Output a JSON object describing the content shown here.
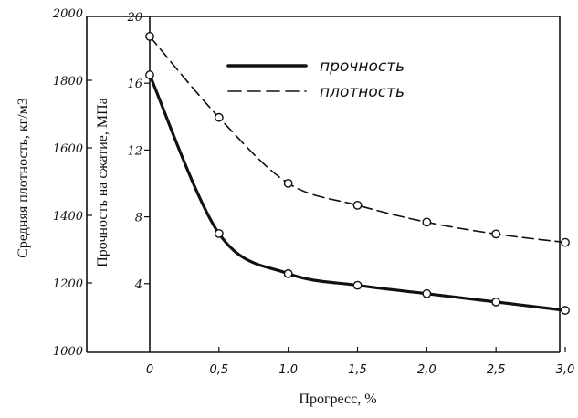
{
  "chart_data": {
    "type": "line",
    "xlabel": "Прогресс, %",
    "x_ticks": [
      "0",
      "0,5",
      "1.0",
      "1,5",
      "2,0",
      "2,5",
      "3,0"
    ],
    "x_values": [
      0,
      0.5,
      1.0,
      1.5,
      2.0,
      2.5,
      3.0
    ],
    "xlim": [
      -0.5,
      3.0
    ],
    "left_axis": {
      "label": "Средняя плотность, кг/м3",
      "ticks": [
        "1000",
        "1200",
        "1400",
        "1600",
        "1800",
        "2000"
      ],
      "tick_values": [
        1000,
        1200,
        1400,
        1600,
        1800,
        2000
      ],
      "lim": [
        1000,
        2000
      ]
    },
    "right_axis": {
      "label": "Прочность на сжатие, МПа",
      "ticks": [
        "4",
        "8",
        "12",
        "16",
        "20"
      ],
      "tick_values": [
        4,
        8,
        12,
        16,
        20
      ],
      "lim": [
        0,
        20
      ]
    },
    "series": [
      {
        "name": "прочность",
        "axis": "right",
        "style": "solid",
        "x": [
          0,
          0.5,
          1.0,
          1.5,
          2.0,
          2.5,
          3.0
        ],
        "values": [
          16.5,
          7.0,
          4.6,
          3.9,
          3.4,
          2.9,
          2.4
        ]
      },
      {
        "name": "плотность",
        "axis": "left",
        "style": "dashed",
        "x": [
          0,
          0.5,
          1.0,
          1.5,
          2.0,
          2.5,
          3.0
        ],
        "values": [
          1930,
          1690,
          1495,
          1430,
          1380,
          1345,
          1320
        ]
      }
    ],
    "grid": false,
    "legend": "top-right"
  }
}
